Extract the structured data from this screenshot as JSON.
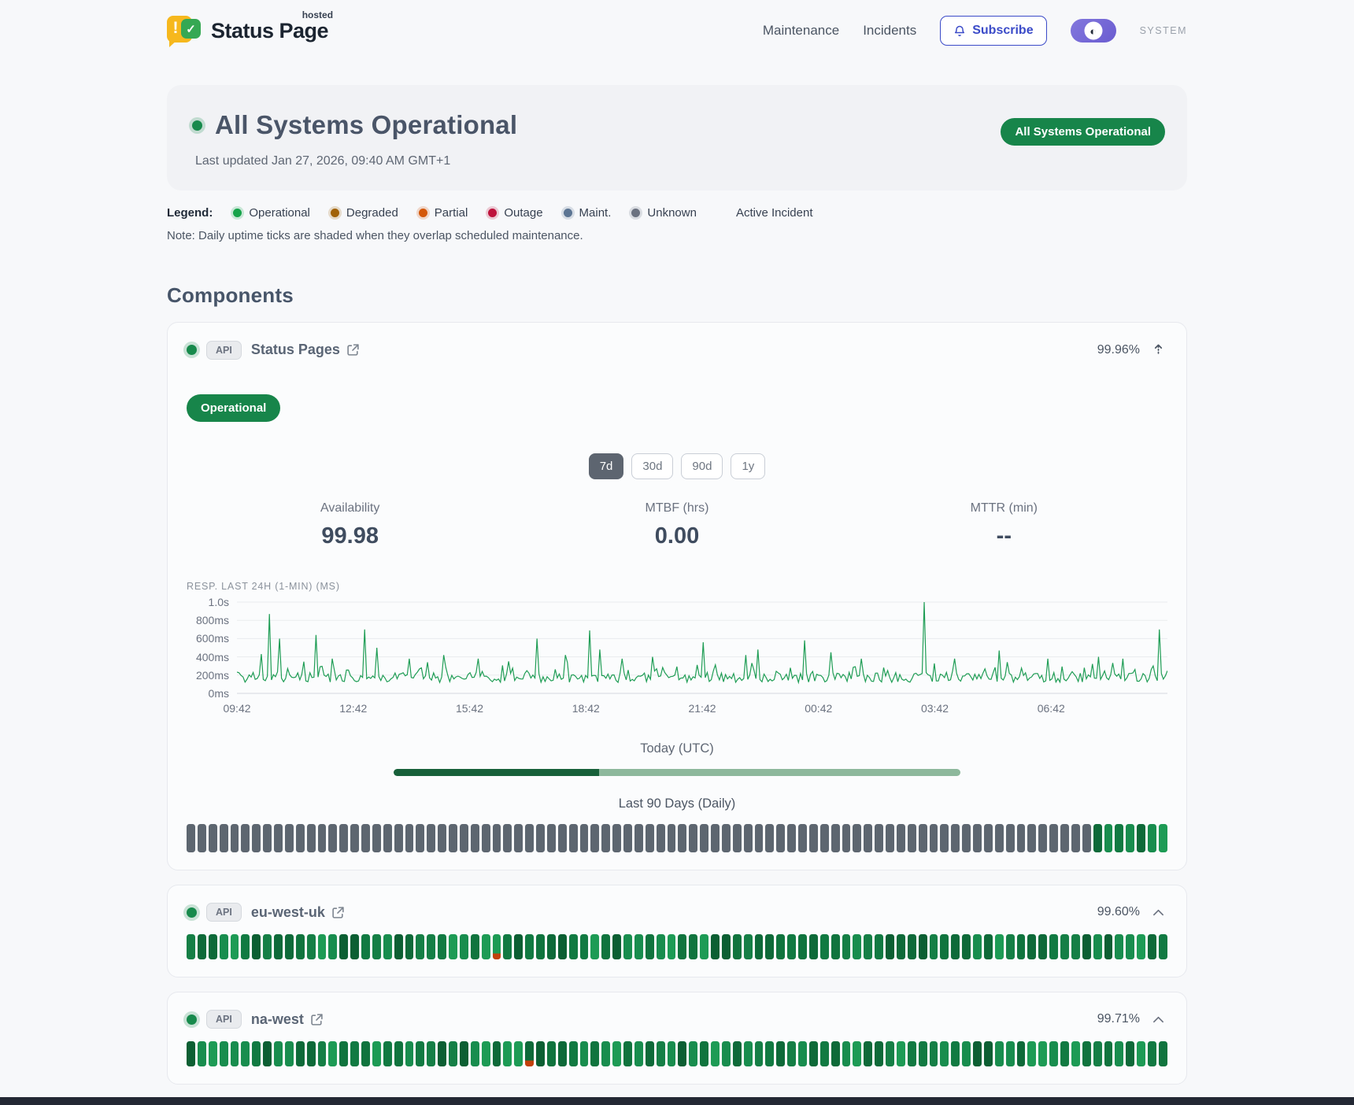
{
  "brand": {
    "name": "Status Page",
    "superscript": "hosted"
  },
  "nav": {
    "links": [
      "Maintenance",
      "Incidents"
    ],
    "subscribe_label": "Subscribe",
    "theme_label": "SYSTEM"
  },
  "hero": {
    "title": "All Systems Operational",
    "last_updated": "Last updated Jan 27, 2026, 09:40 AM GMT+1",
    "badge": "All Systems Operational"
  },
  "legend": {
    "label": "Legend:",
    "items": [
      {
        "label": "Operational",
        "color": "#16a34a"
      },
      {
        "label": "Degraded",
        "color": "#a16207"
      },
      {
        "label": "Partial",
        "color": "#d45708"
      },
      {
        "label": "Outage",
        "color": "#be123c"
      },
      {
        "label": "Maint.",
        "color": "#5c7593"
      },
      {
        "label": "Unknown",
        "color": "#6b7280"
      },
      {
        "label": "Active Incident",
        "color": null
      }
    ],
    "note": "Note: Daily uptime ticks are shaded when they overlap scheduled maintenance."
  },
  "components_title": "Components",
  "colors": {
    "accent_green": "#17854a",
    "tick_unknown": "#5d6670",
    "tick_green_palette": [
      "#157f46",
      "#10743e",
      "#0c5f33",
      "#188d4e",
      "#117a42",
      "#0e6a39",
      "#1d9b55"
    ],
    "chart_line": "#1f9d55",
    "progress_dark": "#17603a",
    "progress_light": "#8db89c",
    "subscribe_indigo": "#3b4bc8"
  },
  "components": [
    {
      "name": "Status Pages",
      "type_badge": "API",
      "uptime_pct": "99.96%",
      "status_badge": "Operational",
      "ranges": [
        "7d",
        "30d",
        "90d",
        "1y"
      ],
      "active_range": "7d",
      "stats": [
        {
          "label": "Availability",
          "value": "99.98"
        },
        {
          "label": "MTBF (hrs)",
          "value": "0.00"
        },
        {
          "label": "MTTR (min)",
          "value": "--"
        }
      ],
      "today_label": "Today (UTC)",
      "today_progress": 0.363,
      "history_label": "Last 90 Days (Daily)",
      "history": {
        "days": 90,
        "runs": [
          {
            "status": "unknown",
            "n": 83
          },
          {
            "status": "operational",
            "n": 7
          }
        ],
        "incidents": []
      }
    },
    {
      "name": "eu-west-uk",
      "type_badge": "API",
      "uptime_pct": "99.60%",
      "history": {
        "days": 90,
        "runs": [
          {
            "status": "operational",
            "n": 90
          }
        ],
        "incidents": [
          {
            "index": 28,
            "color": "#c2410c"
          }
        ]
      }
    },
    {
      "name": "na-west",
      "type_badge": "API",
      "uptime_pct": "99.71%",
      "history": {
        "days": 90,
        "runs": [
          {
            "status": "operational",
            "n": 90
          }
        ],
        "incidents": [
          {
            "index": 31,
            "color": "#c2410c"
          }
        ]
      }
    }
  ],
  "chart_data": {
    "type": "line",
    "title": "RESP. LAST 24H (1-MIN) (MS)",
    "x_tick_labels": [
      "09:42",
      "12:42",
      "15:42",
      "18:42",
      "21:42",
      "00:42",
      "03:42",
      "06:42"
    ],
    "y_tick_labels": [
      "1.0s",
      "800ms",
      "600ms",
      "400ms",
      "200ms",
      "0ms"
    ],
    "ylim": [
      0,
      1000
    ],
    "unit": "ms",
    "grid": true,
    "n_points": 460,
    "noise_seed": 12,
    "baseline_ms": {
      "min": 120,
      "max": 320
    },
    "spikes": [
      [
        0.026,
        430
      ],
      [
        0.035,
        870
      ],
      [
        0.046,
        600
      ],
      [
        0.084,
        640
      ],
      [
        0.103,
        380
      ],
      [
        0.138,
        700
      ],
      [
        0.151,
        500
      ],
      [
        0.186,
        380
      ],
      [
        0.222,
        420
      ],
      [
        0.259,
        380
      ],
      [
        0.292,
        350
      ],
      [
        0.323,
        600
      ],
      [
        0.354,
        420
      ],
      [
        0.378,
        690
      ],
      [
        0.389,
        480
      ],
      [
        0.415,
        380
      ],
      [
        0.446,
        400
      ],
      [
        0.501,
        560
      ],
      [
        0.547,
        420
      ],
      [
        0.56,
        480
      ],
      [
        0.609,
        580
      ],
      [
        0.639,
        450
      ],
      [
        0.67,
        380
      ],
      [
        0.738,
        1000
      ],
      [
        0.771,
        380
      ],
      [
        0.82,
        470
      ],
      [
        0.872,
        380
      ],
      [
        0.925,
        400
      ],
      [
        0.952,
        380
      ],
      [
        0.991,
        700
      ]
    ]
  }
}
